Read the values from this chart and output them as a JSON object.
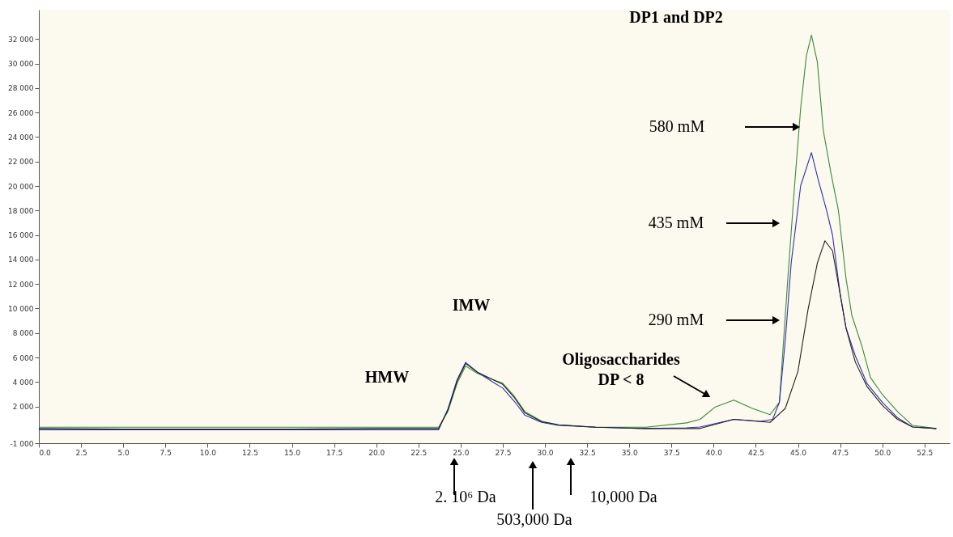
{
  "chart_data": {
    "type": "line",
    "xlim": [
      0,
      54
    ],
    "ylim": [
      -1000,
      34400
    ],
    "xticks": [
      {
        "value": 0,
        "label": "0.0"
      },
      {
        "value": 2.5,
        "label": "2.5"
      },
      {
        "value": 5,
        "label": "5.0"
      },
      {
        "value": 7.5,
        "label": "7.5"
      },
      {
        "value": 10,
        "label": "10.0"
      },
      {
        "value": 12.5,
        "label": "12.5"
      },
      {
        "value": 15,
        "label": "15.0"
      },
      {
        "value": 17.5,
        "label": "17.5"
      },
      {
        "value": 20,
        "label": "20.0"
      },
      {
        "value": 22.5,
        "label": "22.5"
      },
      {
        "value": 25,
        "label": "25.0"
      },
      {
        "value": 27.5,
        "label": "27.5"
      },
      {
        "value": 30,
        "label": "30.0"
      },
      {
        "value": 32.5,
        "label": "32.5"
      },
      {
        "value": 35,
        "label": "35.0"
      },
      {
        "value": 37.5,
        "label": "37.5"
      },
      {
        "value": 40,
        "label": "40.0"
      },
      {
        "value": 42.5,
        "label": "42.5"
      },
      {
        "value": 45,
        "label": "45.0"
      },
      {
        "value": 47.5,
        "label": "47.5"
      },
      {
        "value": 50,
        "label": "50.0"
      },
      {
        "value": 52.5,
        "label": "52.5"
      }
    ],
    "yticks": [
      {
        "value": -1000,
        "label": "-1 000"
      },
      {
        "value": 2000,
        "label": "2 000"
      },
      {
        "value": 4000,
        "label": "4 000"
      },
      {
        "value": 6000,
        "label": "6 000"
      },
      {
        "value": 8000,
        "label": "8 000"
      },
      {
        "value": 10000,
        "label": "10 000"
      },
      {
        "value": 12000,
        "label": "12 000"
      },
      {
        "value": 14000,
        "label": "14 000"
      },
      {
        "value": 16000,
        "label": "16 000"
      },
      {
        "value": 18000,
        "label": "18 000"
      },
      {
        "value": 20000,
        "label": "20 000"
      },
      {
        "value": 22000,
        "label": "22 000"
      },
      {
        "value": 24000,
        "label": "24 000"
      },
      {
        "value": 26000,
        "label": "26 000"
      },
      {
        "value": 28000,
        "label": "28 000"
      },
      {
        "value": 30000,
        "label": "30 000"
      },
      {
        "value": 32000,
        "label": "32 000"
      }
    ],
    "grid": false,
    "marker": "none",
    "line_style": "solid",
    "series": [
      {
        "color": "#3b8a3b",
        "x": [
          0,
          5,
          10,
          15,
          20,
          23.7,
          24.25,
          24.8,
          25.3,
          26.0,
          26.9,
          27.5,
          28.2,
          28.8,
          29.8,
          30.8,
          33,
          36,
          38.4,
          39.2,
          40.1,
          41.2,
          42.3,
          43.35,
          43.9,
          44.4,
          44.8,
          45.16,
          45.5,
          45.8,
          46.15,
          46.5,
          46.96,
          47.4,
          47.85,
          48.2,
          48.8,
          49.3,
          50.0,
          50.9,
          51.8,
          53.2
        ],
        "values": [
          300,
          300,
          300,
          300,
          300,
          300,
          1600,
          3900,
          5300,
          4700,
          4200,
          3900,
          2800,
          1600,
          800,
          500,
          300,
          300,
          660,
          950,
          1960,
          2520,
          1840,
          1330,
          2340,
          12450,
          20020,
          26340,
          30630,
          32330,
          30130,
          24570,
          21040,
          18000,
          12450,
          9420,
          6890,
          4360,
          2980,
          1590,
          450,
          200
        ]
      },
      {
        "color": "#3030b0",
        "x": [
          0,
          5,
          10,
          15,
          20,
          23.7,
          24.25,
          24.8,
          25.3,
          26.0,
          26.9,
          27.5,
          28.2,
          28.8,
          29.8,
          30.8,
          33,
          36,
          38.4,
          39.2,
          41.2,
          42.8,
          43.5,
          43.9,
          44.25,
          44.6,
          45.16,
          45.8,
          46.2,
          46.7,
          47.05,
          47.5,
          47.85,
          48.4,
          49.1,
          50.0,
          50.9,
          51.8,
          53.2
        ],
        "values": [
          100,
          100,
          100,
          100,
          100,
          100,
          1800,
          4200,
          5600,
          4800,
          4000,
          3500,
          2400,
          1300,
          700,
          450,
          300,
          200,
          250,
          320,
          950,
          780,
          950,
          2340,
          7400,
          13710,
          20020,
          22730,
          20530,
          18000,
          15990,
          11190,
          8410,
          6130,
          3860,
          2340,
          1080,
          320,
          200
        ]
      },
      {
        "color": "#222222",
        "x": [
          0,
          5,
          10,
          15,
          20,
          23.7,
          24.25,
          24.8,
          25.3,
          26.0,
          26.9,
          27.5,
          28.2,
          28.8,
          29.8,
          30.8,
          33,
          36,
          38.4,
          39.2,
          41.2,
          43.35,
          44.25,
          45.0,
          45.6,
          46.15,
          46.6,
          47.05,
          47.5,
          47.85,
          48.4,
          49.1,
          50.0,
          50.9,
          51.8,
          53.2
        ],
        "values": [
          200,
          150,
          150,
          150,
          200,
          200,
          1700,
          4100,
          5500,
          4800,
          4200,
          3800,
          2700,
          1500,
          750,
          500,
          300,
          200,
          200,
          200,
          950,
          700,
          1840,
          4870,
          9920,
          13710,
          15530,
          14720,
          11190,
          8410,
          5630,
          3610,
          2090,
          950,
          320,
          200
        ]
      }
    ],
    "annotations": [
      "HMW",
      "IMW",
      "Oligosaccharides",
      "DP < 8",
      "DP1 and DP2",
      "580 mM",
      "435 mM",
      "290 mM",
      "2. 10⁶ Da",
      "503,000 Da",
      "10,000 Da"
    ]
  }
}
